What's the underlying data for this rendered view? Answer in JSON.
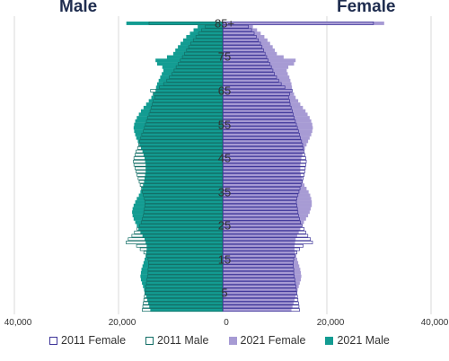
{
  "header": {
    "male_label": "Male",
    "female_label": "Female"
  },
  "colors": {
    "male_2021": "#139c92",
    "female_2021": "#a79bd4",
    "male_2011_outline": "#126e66",
    "female_2011_outline": "#3d3498",
    "grid": "#d9d9d9"
  },
  "chart_data": {
    "type": "bar",
    "orientation": "horizontal-population-pyramid",
    "x_ticks": [
      "40,000",
      "20,000",
      "0",
      "20,000",
      "40,000"
    ],
    "xlim": [
      -40000,
      40000
    ],
    "y_ticks": [
      "5",
      "15",
      "25",
      "35",
      "45",
      "55",
      "65",
      "75",
      "85+"
    ],
    "categories": [
      "0",
      "1",
      "2",
      "3",
      "4",
      "5",
      "6",
      "7",
      "8",
      "9",
      "10",
      "11",
      "12",
      "13",
      "14",
      "15",
      "16",
      "17",
      "18",
      "19",
      "20",
      "21",
      "22",
      "23",
      "24",
      "25",
      "26",
      "27",
      "28",
      "29",
      "30",
      "31",
      "32",
      "33",
      "34",
      "35",
      "36",
      "37",
      "38",
      "39",
      "40",
      "41",
      "42",
      "43",
      "44",
      "45",
      "46",
      "47",
      "48",
      "49",
      "50",
      "51",
      "52",
      "53",
      "54",
      "55",
      "56",
      "57",
      "58",
      "59",
      "60",
      "61",
      "62",
      "63",
      "64",
      "65",
      "66",
      "67",
      "68",
      "69",
      "70",
      "71",
      "72",
      "73",
      "74",
      "75",
      "76",
      "77",
      "78",
      "79",
      "80",
      "81",
      "82",
      "83",
      "84",
      "85+"
    ],
    "series": [
      {
        "name": "2011 Female",
        "style": "outline",
        "side": "female",
        "values": [
          14800,
          14700,
          14600,
          14500,
          14400,
          14300,
          14200,
          14100,
          14000,
          13900,
          13800,
          13700,
          13700,
          13600,
          13600,
          13700,
          13900,
          14300,
          14800,
          15500,
          17300,
          16900,
          16400,
          16000,
          15700,
          15300,
          15000,
          14800,
          14600,
          14500,
          14400,
          14300,
          14200,
          14300,
          14500,
          14700,
          14900,
          15100,
          15300,
          15500,
          15700,
          15800,
          15900,
          16000,
          16100,
          16000,
          15800,
          15700,
          15500,
          15400,
          15200,
          15000,
          14800,
          14600,
          14400,
          14200,
          14000,
          13800,
          13600,
          13400,
          13200,
          13000,
          12900,
          12700,
          12900,
          13400,
          12000,
          11300,
          10800,
          10400,
          10000,
          9700,
          9400,
          9100,
          8800,
          8500,
          8200,
          7900,
          7600,
          7300,
          6900,
          6500,
          6100,
          5600,
          5000,
          29000
        ]
      },
      {
        "name": "2011 Male",
        "style": "outline",
        "side": "male",
        "values": [
          15500,
          15400,
          15300,
          15200,
          15100,
          15000,
          14900,
          14800,
          14700,
          14600,
          14500,
          14400,
          14400,
          14300,
          14300,
          14400,
          14700,
          15200,
          15900,
          16600,
          18600,
          18200,
          17500,
          17000,
          16500,
          16000,
          15700,
          15500,
          15300,
          15200,
          15100,
          15000,
          15000,
          15100,
          15300,
          15500,
          15700,
          15900,
          16100,
          16300,
          16500,
          16700,
          16900,
          17100,
          17200,
          17100,
          16900,
          16700,
          16400,
          16200,
          16000,
          15800,
          15600,
          15300,
          15100,
          14900,
          14700,
          14500,
          14200,
          14000,
          13800,
          13600,
          13400,
          13100,
          13400,
          13900,
          12200,
          11400,
          10800,
          10300,
          9800,
          9400,
          9000,
          8600,
          8200,
          7800,
          7400,
          7000,
          6600,
          6200,
          5700,
          5200,
          4700,
          4100,
          3400,
          14200
        ]
      },
      {
        "name": "2021 Female",
        "style": "filled",
        "side": "female",
        "values": [
          13200,
          13400,
          13600,
          13800,
          14000,
          14200,
          14400,
          14600,
          14800,
          15000,
          15100,
          15000,
          14900,
          14700,
          14500,
          14300,
          14100,
          13900,
          13800,
          13800,
          13900,
          14000,
          14300,
          14600,
          14900,
          15200,
          15600,
          16000,
          16400,
          16700,
          16900,
          17100,
          17100,
          17000,
          16800,
          16500,
          16100,
          15700,
          15400,
          15200,
          15000,
          14900,
          14900,
          14900,
          15000,
          15100,
          15300,
          15500,
          15800,
          16100,
          16400,
          16700,
          17000,
          17200,
          17300,
          17200,
          17000,
          16700,
          16300,
          15900,
          15400,
          14900,
          14500,
          14000,
          13700,
          13300,
          13300,
          13200,
          13000,
          12800,
          12500,
          12300,
          12600,
          13700,
          14000,
          11700,
          10400,
          10000,
          9600,
          9100,
          8600,
          8000,
          7300,
          6600,
          5800,
          31000
        ]
      },
      {
        "name": "2021 Male",
        "style": "filled",
        "side": "male",
        "values": [
          13900,
          14100,
          14300,
          14500,
          14700,
          14900,
          15100,
          15300,
          15500,
          15700,
          15800,
          15700,
          15600,
          15400,
          15200,
          15000,
          14800,
          14700,
          14600,
          14600,
          14800,
          15000,
          15400,
          15800,
          16200,
          16500,
          16800,
          17100,
          17300,
          17400,
          17300,
          17100,
          16800,
          16500,
          16100,
          15800,
          15500,
          15300,
          15100,
          15000,
          14900,
          14800,
          14800,
          14800,
          14900,
          15000,
          15200,
          15400,
          15700,
          16000,
          16300,
          16600,
          16800,
          17000,
          17100,
          17000,
          16800,
          16500,
          16100,
          15700,
          15200,
          14700,
          14200,
          13700,
          13300,
          12900,
          12800,
          12600,
          12300,
          12000,
          11700,
          11400,
          11600,
          12600,
          12900,
          10700,
          9500,
          9100,
          8600,
          8100,
          7600,
          7000,
          6300,
          5600,
          4800,
          18500
        ]
      }
    ],
    "legend": {
      "position": "bottom",
      "labels": [
        "2011 Female",
        "2011 Male",
        "2021 Female",
        "2021 Male"
      ]
    }
  }
}
